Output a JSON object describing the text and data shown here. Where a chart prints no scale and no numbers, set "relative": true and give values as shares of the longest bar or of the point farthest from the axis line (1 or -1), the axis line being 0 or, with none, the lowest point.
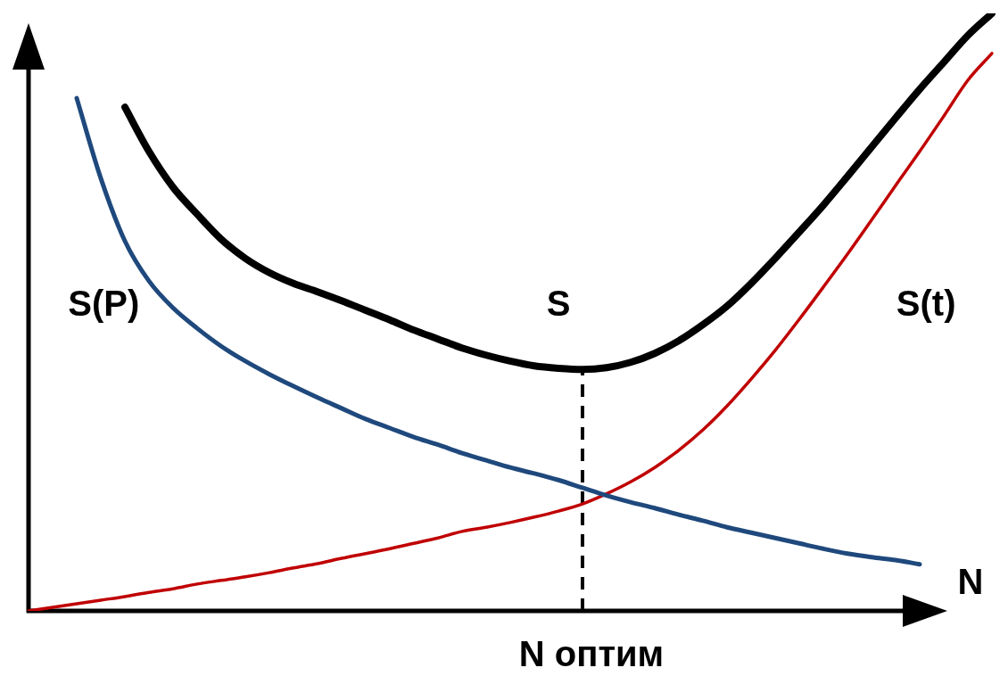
{
  "chart_data": {
    "type": "line",
    "relative": true,
    "xlabel": "N",
    "categories": [
      null,
      null,
      null,
      null,
      null,
      null,
      null,
      null,
      null,
      null,
      null,
      null,
      null,
      null,
      null,
      null,
      null,
      null,
      null,
      null,
      null,
      null,
      null,
      null,
      null,
      null,
      null,
      null,
      null,
      null,
      null,
      null,
      null,
      null,
      null,
      null,
      null,
      null,
      null,
      null,
      null
    ],
    "series": [
      {
        "name": "S(P)",
        "color": "#1f497d",
        "values": [
          null,
          null,
          0.858,
          0.724,
          0.619,
          0.552,
          0.507,
          0.473,
          0.443,
          0.418,
          0.396,
          0.376,
          0.357,
          0.339,
          0.321,
          0.306,
          0.291,
          0.278,
          0.264,
          0.252,
          0.24,
          0.23,
          0.219,
          0.206,
          0.193,
          0.182,
          0.172,
          0.161,
          0.151,
          0.14,
          0.131,
          0.122,
          0.113,
          0.104,
          0.096,
          0.09,
          0.085,
          0.078,
          null,
          null,
          null
        ]
      },
      {
        "name": "S",
        "color": "#000000",
        "values": [
          null,
          null,
          null,
          null,
          0.843,
          0.769,
          0.709,
          0.664,
          0.622,
          0.59,
          0.566,
          0.548,
          0.534,
          0.519,
          0.503,
          0.487,
          0.47,
          0.455,
          0.44,
          0.428,
          0.418,
          0.41,
          0.406,
          0.404,
          0.407,
          0.416,
          0.431,
          0.452,
          0.479,
          0.51,
          0.548,
          0.59,
          0.634,
          0.679,
          0.727,
          0.776,
          0.825,
          0.873,
          0.918,
          0.963,
          1
        ]
      },
      {
        "name": "S(t)",
        "color": "#c00000",
        "values": [
          0,
          0.006,
          0.012,
          0.018,
          0.024,
          0.031,
          0.037,
          0.045,
          0.051,
          0.057,
          0.064,
          0.072,
          0.079,
          0.088,
          0.096,
          0.104,
          0.113,
          0.122,
          0.133,
          0.14,
          0.148,
          0.157,
          0.167,
          0.179,
          0.196,
          0.216,
          0.24,
          0.269,
          0.303,
          0.343,
          0.388,
          0.436,
          0.488,
          0.542,
          0.597,
          0.654,
          0.712,
          0.769,
          0.828,
          0.888,
          0.933
        ]
      }
    ],
    "annotations": [
      "N оптим"
    ]
  }
}
